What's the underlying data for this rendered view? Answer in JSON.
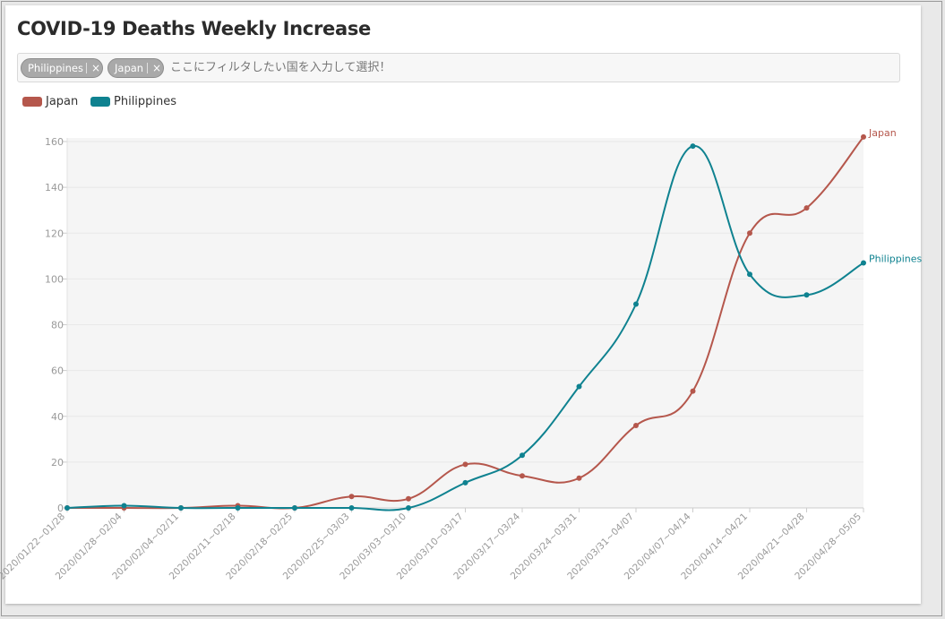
{
  "title": "COVID-19 Deaths Weekly Increase",
  "filter": {
    "chips": [
      {
        "label": "Philippines",
        "remove": "×"
      },
      {
        "label": "Japan",
        "remove": "×"
      }
    ],
    "placeholder": "ここにフィルタしたい国を入力して選択！"
  },
  "colors": {
    "japan": "#b5574c",
    "philippines": "#0f8290"
  },
  "chart_data": {
    "type": "line",
    "title": "COVID-19 Deaths Weekly Increase",
    "xlabel": "",
    "ylabel": "",
    "ylim": [
      0,
      160
    ],
    "yticks": [
      0,
      20,
      40,
      60,
      80,
      100,
      120,
      140,
      160
    ],
    "grid": true,
    "legend_position": "top-left",
    "categories": [
      "2020/01/22~01/28",
      "2020/01/28~02/04",
      "2020/02/04~02/11",
      "2020/02/11~02/18",
      "2020/02/18~02/25",
      "2020/02/25~03/03",
      "2020/03/03~03/10",
      "2020/03/10~03/17",
      "2020/03/17~03/24",
      "2020/03/24~03/31",
      "2020/03/31~04/07",
      "2020/04/07~04/14",
      "2020/04/14~04/21",
      "2020/04/21~04/28",
      "2020/04/28~05/05"
    ],
    "series": [
      {
        "name": "Japan",
        "color": "#b5574c",
        "values": [
          0,
          0,
          0,
          1,
          0,
          5,
          4,
          19,
          14,
          13,
          36,
          51,
          120,
          131,
          162
        ]
      },
      {
        "name": "Philippines",
        "color": "#0f8290",
        "values": [
          0,
          1,
          0,
          0,
          0,
          0,
          0,
          11,
          23,
          53,
          89,
          158,
          102,
          93,
          107
        ]
      }
    ]
  }
}
